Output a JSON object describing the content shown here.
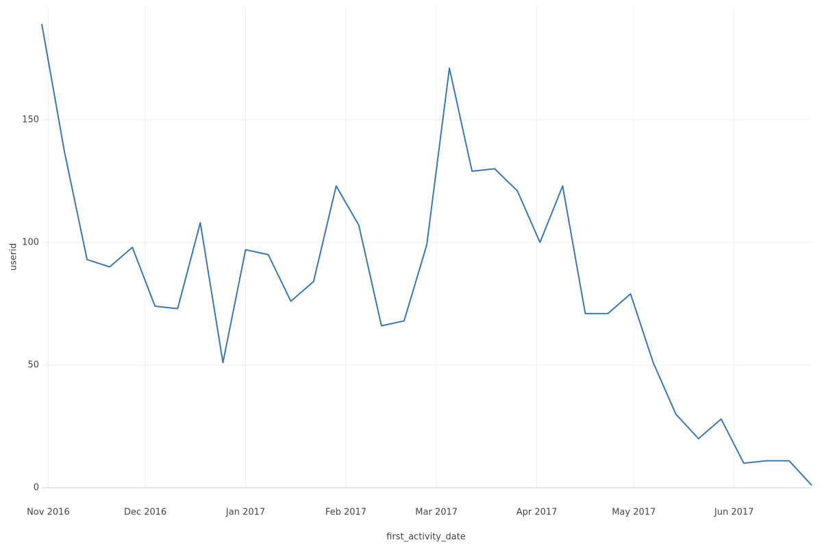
{
  "chart_data": {
    "type": "line",
    "x_label": "first_activity_date",
    "y_label": "userid",
    "x": [
      "2016-10-30",
      "2016-11-06",
      "2016-11-13",
      "2016-11-20",
      "2016-11-27",
      "2016-12-04",
      "2016-12-11",
      "2016-12-18",
      "2016-12-25",
      "2017-01-01",
      "2017-01-08",
      "2017-01-15",
      "2017-01-22",
      "2017-01-29",
      "2017-02-05",
      "2017-02-12",
      "2017-02-19",
      "2017-02-26",
      "2017-03-05",
      "2017-03-12",
      "2017-03-19",
      "2017-03-26",
      "2017-04-02",
      "2017-04-09",
      "2017-04-16",
      "2017-04-23",
      "2017-04-30",
      "2017-05-07",
      "2017-05-14",
      "2017-05-21",
      "2017-05-28",
      "2017-06-04",
      "2017-06-11",
      "2017-06-18",
      "2017-06-25"
    ],
    "series": [
      {
        "name": "userid",
        "color": "#3a76af",
        "values": [
          189,
          137,
          93,
          90,
          98,
          74,
          73,
          108,
          51,
          97,
          95,
          76,
          84,
          123,
          107,
          66,
          68,
          99,
          171,
          129,
          130,
          121,
          100,
          123,
          71,
          71,
          79,
          51,
          30,
          20,
          28,
          10,
          11,
          11,
          1
        ]
      }
    ],
    "xlim": [
      "2016-10-30",
      "2017-06-25"
    ],
    "xticks": [
      {
        "value": "2016-11-01",
        "label": "Nov 2016"
      },
      {
        "value": "2016-12-01",
        "label": "Dec 2016"
      },
      {
        "value": "2017-01-01",
        "label": "Jan 2017"
      },
      {
        "value": "2017-02-01",
        "label": "Feb 2017"
      },
      {
        "value": "2017-03-01",
        "label": "Mar 2017"
      },
      {
        "value": "2017-04-01",
        "label": "Apr 2017"
      },
      {
        "value": "2017-05-01",
        "label": "May 2017"
      },
      {
        "value": "2017-06-01",
        "label": "Jun 2017"
      }
    ],
    "ylim": [
      0,
      196
    ],
    "yticks": [
      0,
      50,
      100,
      150
    ],
    "grid": true
  }
}
